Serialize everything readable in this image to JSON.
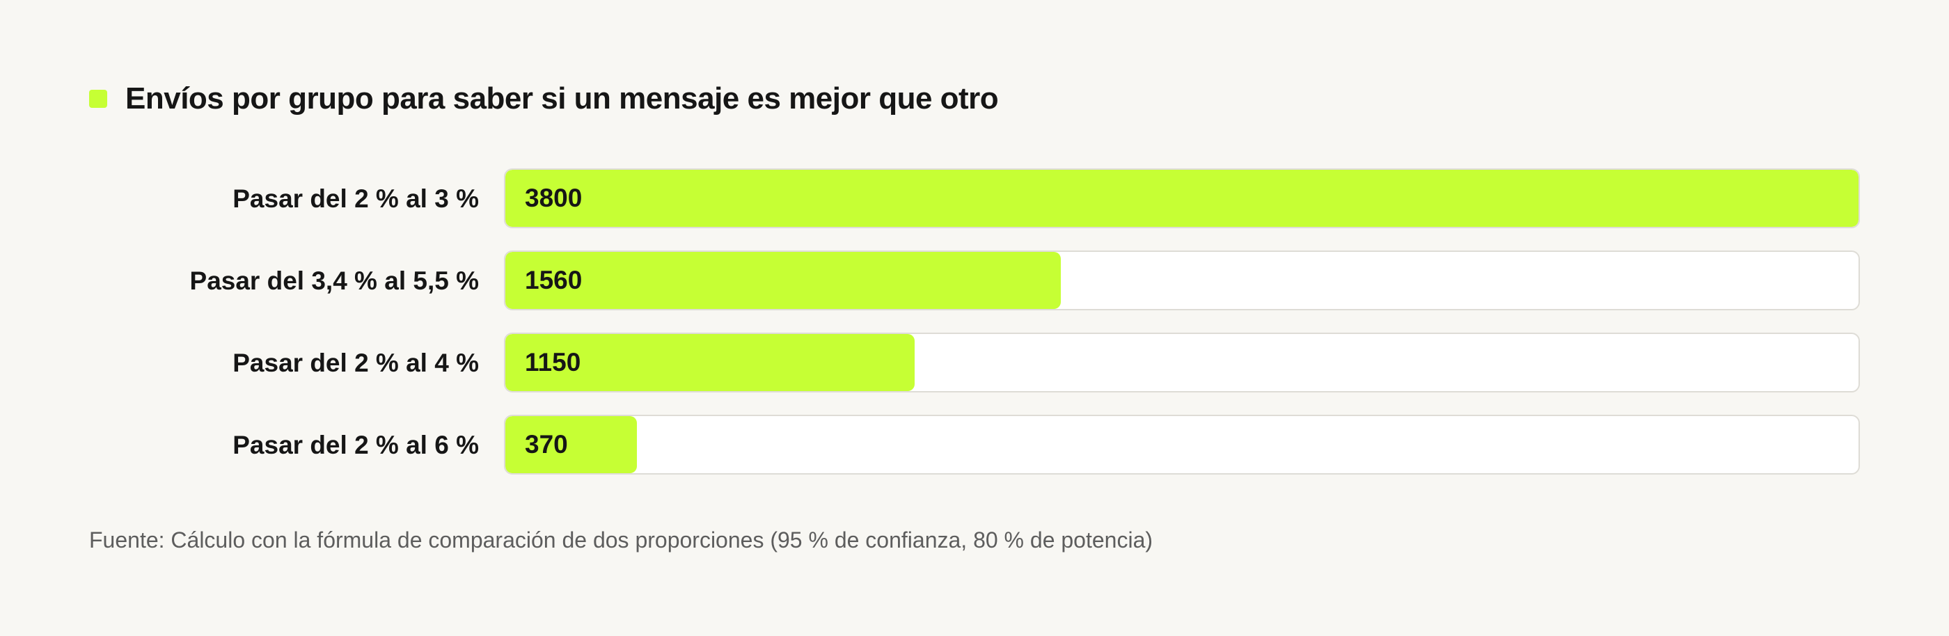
{
  "chart_data": {
    "type": "bar",
    "orientation": "horizontal",
    "title": "Envíos por grupo para saber si un mensaje es mejor que otro",
    "categories": [
      "Pasar del 2 % al 3 %",
      "Pasar del 3,4 % al 5,5 %",
      "Pasar del 2 % al 4 %",
      "Pasar del 2 % al 6 %"
    ],
    "values": [
      3800,
      1560,
      1150,
      370
    ],
    "value_labels": [
      "3800",
      "1560",
      "1150",
      "370"
    ],
    "xlim": [
      0,
      3800
    ],
    "grid": false,
    "legend": "none",
    "bar_color": "#c6ff34"
  },
  "source": "Fuente: Cálculo con la fórmula de comparación de dos proporciones (95 % de confianza, 80 % de potencia)",
  "colors": {
    "accent": "#c6ff34",
    "background": "#f8f7f3",
    "track": "#ffffff",
    "track_border": "#dedcd6"
  }
}
